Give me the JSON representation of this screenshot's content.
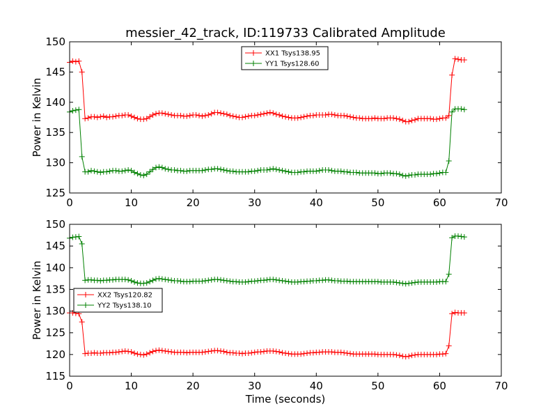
{
  "chart_data": [
    {
      "type": "line",
      "title": "messier_42_track, ID:119733 Calibrated Amplitude",
      "xlabel": "",
      "ylabel": "Power in Kelvin",
      "xlim": [
        0,
        70
      ],
      "ylim": [
        125,
        150
      ],
      "x_ticks": [
        0,
        10,
        20,
        30,
        40,
        50,
        60,
        70
      ],
      "y_ticks": [
        125,
        130,
        135,
        140,
        145,
        150
      ],
      "grid": false,
      "legend_position": "top-center",
      "x": [
        0,
        0.5,
        1,
        1.5,
        2,
        2.5,
        3,
        3.5,
        4,
        4.5,
        5,
        5.5,
        6,
        6.5,
        7,
        7.5,
        8,
        8.5,
        9,
        9.5,
        10,
        10.5,
        11,
        11.5,
        12,
        12.5,
        13,
        13.5,
        14,
        14.5,
        15,
        15.5,
        16,
        16.5,
        17,
        17.5,
        18,
        18.5,
        19,
        19.5,
        20,
        20.5,
        21,
        21.5,
        22,
        22.5,
        23,
        23.5,
        24,
        24.5,
        25,
        25.5,
        26,
        26.5,
        27,
        27.5,
        28,
        28.5,
        29,
        29.5,
        30,
        30.5,
        31,
        31.5,
        32,
        32.5,
        33,
        33.5,
        34,
        34.5,
        35,
        35.5,
        36,
        36.5,
        37,
        37.5,
        38,
        38.5,
        39,
        39.5,
        40,
        40.5,
        41,
        41.5,
        42,
        42.5,
        43,
        43.5,
        44,
        44.5,
        45,
        45.5,
        46,
        46.5,
        47,
        47.5,
        48,
        48.5,
        49,
        49.5,
        50,
        50.5,
        51,
        51.5,
        52,
        52.5,
        53,
        53.5,
        54,
        54.5,
        55,
        55.5,
        56,
        56.5,
        57,
        57.5,
        58,
        58.5,
        59,
        59.5,
        60,
        60.5,
        61,
        61.5,
        62,
        62.5,
        63,
        63.5,
        64
      ],
      "series": [
        {
          "name": "XX1 Tsys138.95",
          "color": "#ff0000",
          "values": [
            146.6,
            146.8,
            146.7,
            146.8,
            145,
            137.3,
            137.4,
            137.6,
            137.6,
            137.5,
            137.6,
            137.7,
            137.5,
            137.6,
            137.6,
            137.7,
            137.8,
            137.8,
            137.9,
            137.9,
            137.7,
            137.5,
            137.3,
            137.2,
            137.2,
            137.3,
            137.6,
            137.9,
            138.1,
            138.2,
            138.2,
            138.1,
            138,
            137.9,
            137.8,
            137.8,
            137.8,
            137.7,
            137.7,
            137.8,
            137.9,
            137.9,
            137.8,
            137.7,
            137.8,
            137.9,
            138.1,
            138.3,
            138.3,
            138.2,
            138.1,
            138,
            137.8,
            137.7,
            137.6,
            137.5,
            137.5,
            137.6,
            137.7,
            137.8,
            137.8,
            137.9,
            138,
            138.1,
            138.2,
            138.3,
            138.2,
            138,
            137.9,
            137.7,
            137.6,
            137.5,
            137.4,
            137.4,
            137.4,
            137.5,
            137.6,
            137.7,
            137.8,
            137.8,
            137.9,
            137.9,
            137.9,
            137.9,
            138,
            138,
            137.9,
            137.8,
            137.8,
            137.8,
            137.7,
            137.6,
            137.5,
            137.4,
            137.4,
            137.3,
            137.3,
            137.3,
            137.3,
            137.4,
            137.3,
            137.3,
            137.3,
            137.4,
            137.4,
            137.4,
            137.3,
            137.2,
            137,
            136.8,
            136.8,
            137,
            137.1,
            137.3,
            137.3,
            137.3,
            137.3,
            137.3,
            137.2,
            137.2,
            137.3,
            137.4,
            137.4,
            137.8,
            144.5,
            147.2,
            147.1,
            147,
            147
          ]
        },
        {
          "name": "YY1 Tsys128.60",
          "color": "#008000",
          "values": [
            138.4,
            138.6,
            138.7,
            138.8,
            131,
            128.5,
            128.5,
            128.7,
            128.6,
            128.5,
            128.4,
            128.5,
            128.5,
            128.6,
            128.7,
            128.7,
            128.6,
            128.6,
            128.7,
            128.8,
            128.7,
            128.4,
            128.2,
            128,
            127.9,
            128.1,
            128.5,
            128.9,
            129.2,
            129.3,
            129.2,
            129,
            128.9,
            128.8,
            128.8,
            128.7,
            128.7,
            128.6,
            128.6,
            128.7,
            128.7,
            128.7,
            128.7,
            128.7,
            128.8,
            128.9,
            128.9,
            129,
            129,
            128.9,
            128.8,
            128.7,
            128.6,
            128.6,
            128.5,
            128.5,
            128.5,
            128.5,
            128.5,
            128.6,
            128.6,
            128.7,
            128.8,
            128.8,
            128.8,
            128.9,
            129,
            128.9,
            128.8,
            128.7,
            128.6,
            128.5,
            128.4,
            128.4,
            128.4,
            128.5,
            128.5,
            128.6,
            128.6,
            128.6,
            128.6,
            128.7,
            128.8,
            128.8,
            128.8,
            128.7,
            128.6,
            128.6,
            128.6,
            128.5,
            128.5,
            128.4,
            128.4,
            128.4,
            128.3,
            128.3,
            128.3,
            128.3,
            128.3,
            128.3,
            128.2,
            128.2,
            128.3,
            128.3,
            128.3,
            128.2,
            128.2,
            128.1,
            127.9,
            127.8,
            127.9,
            128,
            128,
            128.1,
            128.1,
            128.1,
            128.1,
            128.1,
            128.2,
            128.2,
            128.3,
            128.4,
            128.4,
            130.3,
            138.4,
            138.9,
            138.9,
            138.9,
            138.8
          ]
        }
      ]
    },
    {
      "type": "line",
      "title": "",
      "xlabel": "Time (seconds)",
      "ylabel": "Power in Kelvin",
      "xlim": [
        0,
        70
      ],
      "ylim": [
        115,
        150
      ],
      "x_ticks": [
        0,
        10,
        20,
        30,
        40,
        50,
        60,
        70
      ],
      "y_ticks": [
        115,
        120,
        125,
        130,
        135,
        140,
        145,
        150
      ],
      "grid": false,
      "legend_position": "center-left",
      "x": [
        0,
        0.5,
        1,
        1.5,
        2,
        2.5,
        3,
        3.5,
        4,
        4.5,
        5,
        5.5,
        6,
        6.5,
        7,
        7.5,
        8,
        8.5,
        9,
        9.5,
        10,
        10.5,
        11,
        11.5,
        12,
        12.5,
        13,
        13.5,
        14,
        14.5,
        15,
        15.5,
        16,
        16.5,
        17,
        17.5,
        18,
        18.5,
        19,
        19.5,
        20,
        20.5,
        21,
        21.5,
        22,
        22.5,
        23,
        23.5,
        24,
        24.5,
        25,
        25.5,
        26,
        26.5,
        27,
        27.5,
        28,
        28.5,
        29,
        29.5,
        30,
        30.5,
        31,
        31.5,
        32,
        32.5,
        33,
        33.5,
        34,
        34.5,
        35,
        35.5,
        36,
        36.5,
        37,
        37.5,
        38,
        38.5,
        39,
        39.5,
        40,
        40.5,
        41,
        41.5,
        42,
        42.5,
        43,
        43.5,
        44,
        44.5,
        45,
        45.5,
        46,
        46.5,
        47,
        47.5,
        48,
        48.5,
        49,
        49.5,
        50,
        50.5,
        51,
        51.5,
        52,
        52.5,
        53,
        53.5,
        54,
        54.5,
        55,
        55.5,
        56,
        56.5,
        57,
        57.5,
        58,
        58.5,
        59,
        59.5,
        60,
        60.5,
        61,
        61.5,
        62,
        62.5,
        63,
        63.5,
        64
      ],
      "series": [
        {
          "name": "XX2 Tsys120.82",
          "color": "#ff0000",
          "values": [
            129.6,
            129.6,
            129.5,
            129.4,
            127.5,
            120.2,
            120.3,
            120.3,
            120.4,
            120.3,
            120.3,
            120.4,
            120.4,
            120.4,
            120.5,
            120.5,
            120.6,
            120.7,
            120.8,
            120.7,
            120.6,
            120.3,
            120.1,
            120,
            119.9,
            120.1,
            120.4,
            120.7,
            120.9,
            121,
            120.9,
            120.8,
            120.7,
            120.6,
            120.5,
            120.5,
            120.5,
            120.5,
            120.4,
            120.5,
            120.5,
            120.5,
            120.5,
            120.5,
            120.6,
            120.7,
            120.8,
            120.9,
            120.9,
            120.8,
            120.7,
            120.5,
            120.4,
            120.4,
            120.3,
            120.3,
            120.2,
            120.3,
            120.3,
            120.4,
            120.5,
            120.6,
            120.6,
            120.7,
            120.8,
            120.8,
            120.8,
            120.7,
            120.6,
            120.4,
            120.3,
            120.2,
            120.1,
            120.1,
            120.1,
            120.1,
            120.2,
            120.3,
            120.4,
            120.4,
            120.5,
            120.5,
            120.6,
            120.6,
            120.6,
            120.6,
            120.5,
            120.5,
            120.5,
            120.4,
            120.3,
            120.2,
            120.1,
            120.1,
            120.1,
            120.1,
            120.1,
            120.1,
            120.1,
            120.1,
            120,
            120,
            120,
            120,
            120,
            120,
            119.9,
            119.8,
            119.6,
            119.5,
            119.6,
            119.8,
            119.9,
            120,
            120,
            120,
            120,
            120,
            120,
            120,
            120.1,
            120.1,
            120.2,
            122,
            129.4,
            129.7,
            129.6,
            129.6,
            129.6
          ]
        },
        {
          "name": "YY2 Tsys138.10",
          "color": "#008000",
          "values": [
            146.8,
            147,
            147.1,
            147.2,
            145.5,
            137.1,
            137.2,
            137.2,
            137.1,
            137.1,
            137,
            137.1,
            137.1,
            137.2,
            137.2,
            137.3,
            137.3,
            137.3,
            137.3,
            137.2,
            137,
            136.7,
            136.5,
            136.4,
            136.4,
            136.5,
            136.8,
            137.1,
            137.4,
            137.5,
            137.4,
            137.3,
            137.2,
            137.1,
            137,
            137,
            136.9,
            136.8,
            136.8,
            136.8,
            136.9,
            136.9,
            136.9,
            136.9,
            137,
            137.1,
            137.2,
            137.3,
            137.3,
            137.2,
            137.1,
            137,
            136.9,
            136.8,
            136.8,
            136.7,
            136.7,
            136.7,
            136.8,
            136.9,
            136.9,
            137,
            137.1,
            137.1,
            137.2,
            137.3,
            137.3,
            137.2,
            137.1,
            137,
            136.9,
            136.8,
            136.7,
            136.7,
            136.7,
            136.8,
            136.8,
            136.9,
            136.9,
            137,
            137,
            137.1,
            137.1,
            137.2,
            137.2,
            137.1,
            137,
            137,
            136.9,
            136.9,
            136.9,
            136.8,
            136.8,
            136.8,
            136.8,
            136.8,
            136.8,
            136.8,
            136.8,
            136.8,
            136.8,
            136.7,
            136.7,
            136.7,
            136.7,
            136.7,
            136.6,
            136.5,
            136.4,
            136.3,
            136.4,
            136.5,
            136.6,
            136.7,
            136.7,
            136.7,
            136.7,
            136.7,
            136.7,
            136.7,
            136.8,
            136.8,
            136.8,
            138.5,
            146.9,
            147.3,
            147.3,
            147.2,
            147.1
          ]
        }
      ]
    }
  ]
}
